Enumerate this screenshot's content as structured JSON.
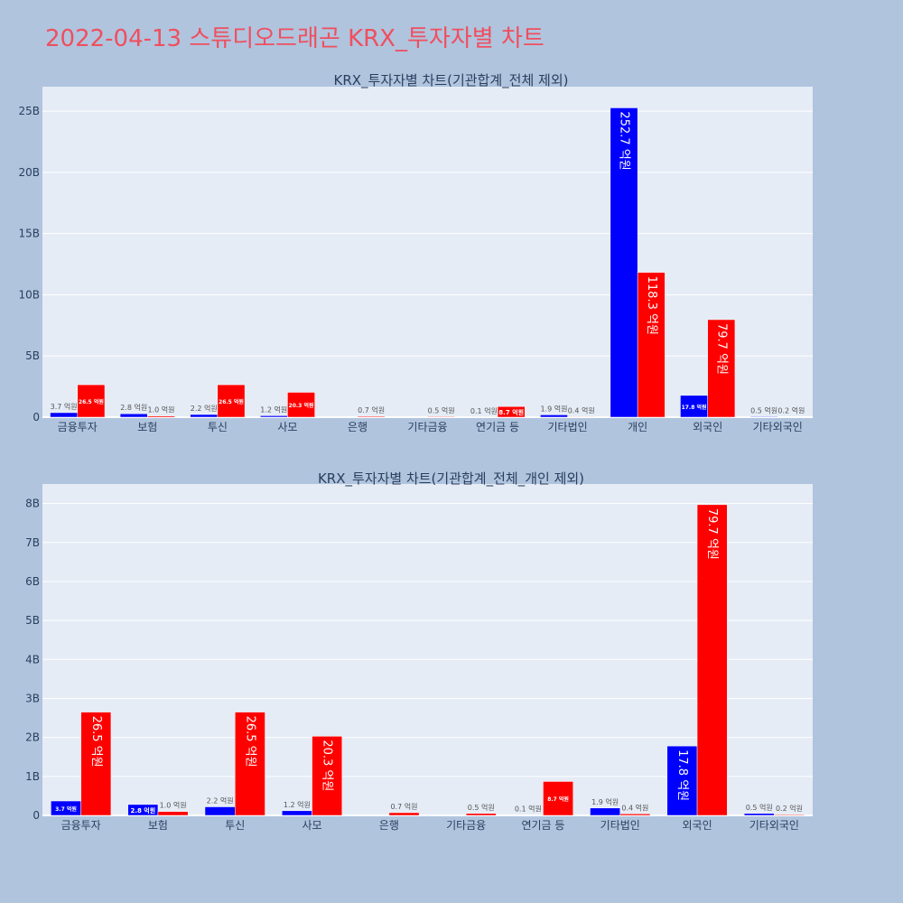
{
  "page_title": "2022-04-13 스튜디오드래곤 KRX_투자자별 차트",
  "colors": {
    "background": "#b0c4de",
    "plot_bg": "#e5ecf6",
    "title": "#ef4f5f",
    "buy": "#0000ff",
    "sell": "#ff0000",
    "axis_text": "#2a3f5f"
  },
  "chart_data": [
    {
      "type": "bar",
      "title": "KRX_투자자별 차트(기관합계_전체 제외)",
      "categories": [
        "금융투자",
        "보험",
        "투신",
        "사모",
        "은행",
        "기타금융",
        "연기금 등",
        "기타법인",
        "개인",
        "외국인",
        "기타외국인"
      ],
      "series": [
        {
          "color": "#0000ff",
          "values": [
            0.37,
            0.28,
            0.22,
            0.12,
            0,
            0,
            0.01,
            0.19,
            25.27,
            1.78,
            0.05
          ],
          "labels": [
            "3.7 억원",
            "2.8 억원",
            "2.2 억원",
            "1.2 억원",
            "",
            "",
            "0.1 억원",
            "1.9 억원",
            "252.7 억원",
            "17.8 억원",
            "0.5 억원"
          ]
        },
        {
          "color": "#ff0000",
          "values": [
            2.65,
            0.1,
            2.65,
            2.03,
            0.07,
            0.05,
            0.87,
            0.04,
            11.83,
            7.97,
            0.02
          ],
          "labels": [
            "26.5 억원",
            "1.0 억원",
            "26.5 억원",
            "20.3 억원",
            "0.7 억원",
            "0.5 억원",
            "8.7 억원",
            "0.4 억원",
            "118.3 억원",
            "79.7 억원",
            "0.2 억원"
          ]
        }
      ],
      "y_unit": "B",
      "ylim": [
        0,
        27
      ],
      "yticks": [
        0,
        5,
        10,
        15,
        20,
        25
      ],
      "ytick_labels": [
        "0",
        "5B",
        "10B",
        "15B",
        "20B",
        "25B"
      ],
      "grid": true
    },
    {
      "type": "bar",
      "title": "KRX_투자자별 차트(기관합계_전체_개인 제외)",
      "categories": [
        "금융투자",
        "보험",
        "투신",
        "사모",
        "은행",
        "기타금융",
        "연기금 등",
        "기타법인",
        "외국인",
        "기타외국인"
      ],
      "series": [
        {
          "color": "#0000ff",
          "values": [
            0.37,
            0.28,
            0.22,
            0.12,
            0,
            0,
            0.01,
            0.19,
            1.78,
            0.05
          ],
          "labels": [
            "3.7 억원",
            "2.8 억원",
            "2.2 억원",
            "1.2 억원",
            "",
            "",
            "0.1 억원",
            "1.9 억원",
            "17.8 억원",
            "0.5 억원"
          ]
        },
        {
          "color": "#ff0000",
          "values": [
            2.65,
            0.1,
            2.65,
            2.03,
            0.07,
            0.05,
            0.87,
            0.04,
            7.97,
            0.02
          ],
          "labels": [
            "26.5 억원",
            "1.0 억원",
            "26.5 억원",
            "20.3 억원",
            "0.7 억원",
            "0.5 억원",
            "8.7 억원",
            "0.4 억원",
            "79.7 억원",
            "0.2 억원"
          ]
        }
      ],
      "y_unit": "B",
      "ylim": [
        0,
        8.5
      ],
      "yticks": [
        0,
        1,
        2,
        3,
        4,
        5,
        6,
        7,
        8
      ],
      "ytick_labels": [
        "0",
        "1B",
        "2B",
        "3B",
        "4B",
        "5B",
        "6B",
        "7B",
        "8B"
      ],
      "grid": true
    }
  ]
}
